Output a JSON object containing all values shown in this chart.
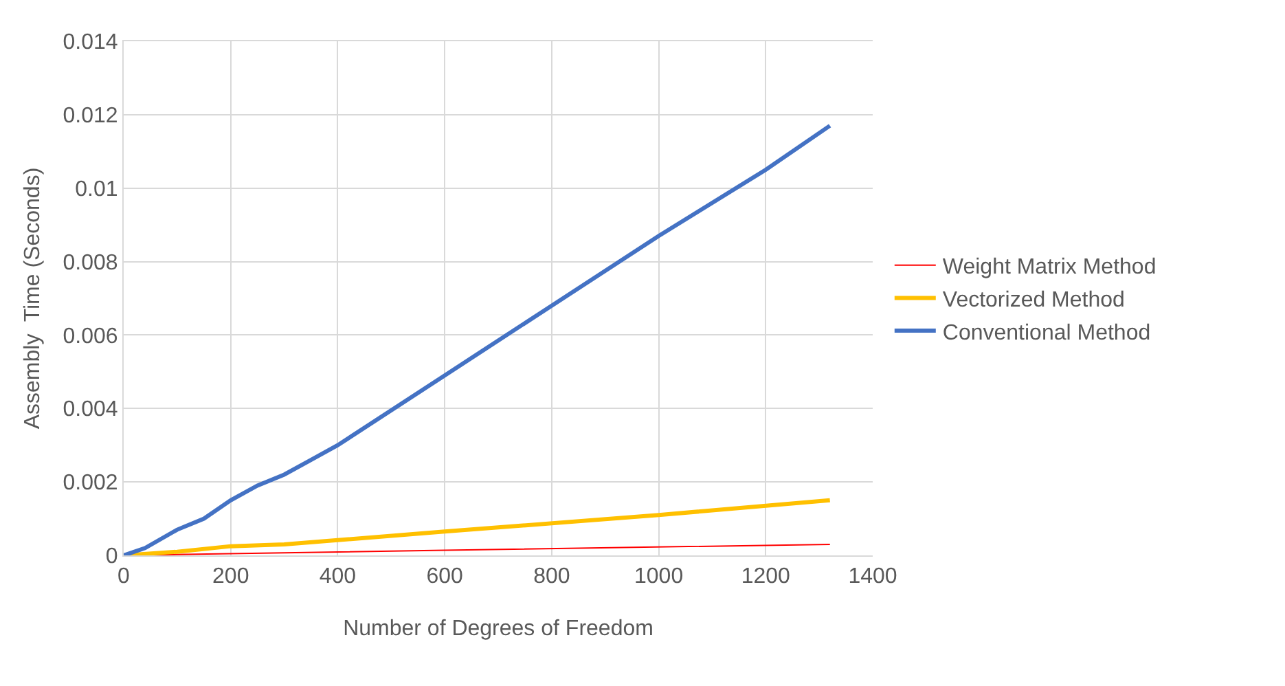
{
  "chart_data": {
    "type": "line",
    "xlabel": "Number of Degrees of Freedom",
    "ylabel": "Assembly  Time (Seconds)",
    "xlim": [
      0,
      1400
    ],
    "xticks": [
      0,
      200,
      400,
      600,
      800,
      1000,
      1200,
      1400
    ],
    "ylim": [
      0,
      0.014
    ],
    "yticks": [
      0,
      0.002,
      0.004,
      0.006,
      0.008,
      0.01,
      0.012,
      0.014
    ],
    "grid": true,
    "legend": "right",
    "marker": "none",
    "series": [
      {
        "name": "Weight Matrix Method",
        "color": "#ff0000",
        "x": [
          0,
          600,
          1320
        ],
        "values": [
          0,
          0.00014,
          0.0003
        ]
      },
      {
        "name": "Vectorized Method",
        "color": "#ffc000",
        "x": [
          0,
          100,
          200,
          300,
          600,
          1000,
          1320
        ],
        "values": [
          0,
          0.0001,
          0.00025,
          0.0003,
          0.00065,
          0.0011,
          0.0015
        ]
      },
      {
        "name": "Conventional Method",
        "color": "#4472c4",
        "x": [
          0,
          40,
          100,
          150,
          200,
          250,
          300,
          350,
          400,
          600,
          800,
          1000,
          1200,
          1320
        ],
        "values": [
          0,
          0.0002,
          0.0007,
          0.001,
          0.0015,
          0.0019,
          0.0022,
          0.0026,
          0.003,
          0.0049,
          0.0068,
          0.0087,
          0.0105,
          0.0117
        ]
      }
    ]
  }
}
